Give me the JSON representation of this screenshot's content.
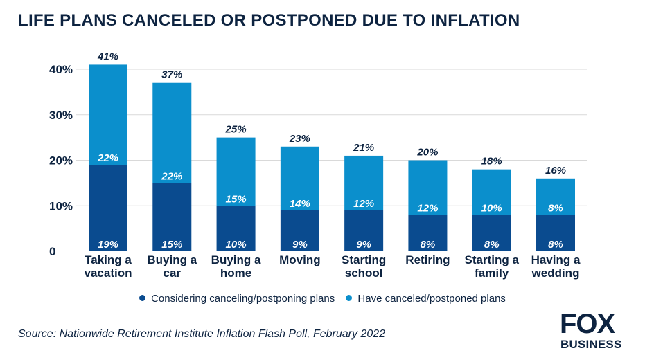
{
  "title": "LIFE PLANS CANCELED OR POSTPONED DUE TO INFLATION",
  "source": "Source:  Nationwide Retirement Institute Inflation Flash Poll, February 2022",
  "logo": {
    "top": "FOX",
    "bottom": "BUSINESS"
  },
  "colors": {
    "considering": "#0a4b8f",
    "canceled": "#0b8fcc",
    "text": "#0d2340",
    "grid": "#d9d9d9"
  },
  "chart_data": {
    "type": "bar",
    "stacked": true,
    "title": "LIFE PLANS CANCELED OR POSTPONED DUE TO INFLATION",
    "categories": [
      [
        "Taking a",
        "vacation"
      ],
      [
        "Buying a",
        "car"
      ],
      [
        "Buying a",
        "home"
      ],
      [
        "Moving"
      ],
      [
        "Starting",
        "school"
      ],
      [
        "Retiring"
      ],
      [
        "Starting a",
        "family"
      ],
      [
        "Having a",
        "wedding"
      ]
    ],
    "series": [
      {
        "name": "Considering canceling/postponing plans",
        "values": [
          19,
          15,
          10,
          9,
          9,
          8,
          8,
          8
        ],
        "labels": [
          "19%",
          "15%",
          "10%",
          "9%",
          "9%",
          "8%",
          "8%",
          "8%"
        ]
      },
      {
        "name": "Have canceled/postponed plans",
        "values": [
          22,
          22,
          15,
          14,
          12,
          12,
          10,
          8
        ],
        "labels": [
          "22%",
          "22%",
          "15%",
          "14%",
          "12%",
          "12%",
          "10%",
          "8%"
        ]
      }
    ],
    "totals": [
      "41%",
      "37%",
      "25%",
      "23%",
      "21%",
      "20%",
      "18%",
      "16%"
    ],
    "yticks": [
      {
        "value": 0,
        "label": "0"
      },
      {
        "value": 10,
        "label": "10%"
      },
      {
        "value": 20,
        "label": "20%"
      },
      {
        "value": 30,
        "label": "30%"
      },
      {
        "value": 40,
        "label": "40%"
      }
    ],
    "ylim": [
      0,
      40
    ],
    "grid": true,
    "legend_position": "bottom"
  }
}
